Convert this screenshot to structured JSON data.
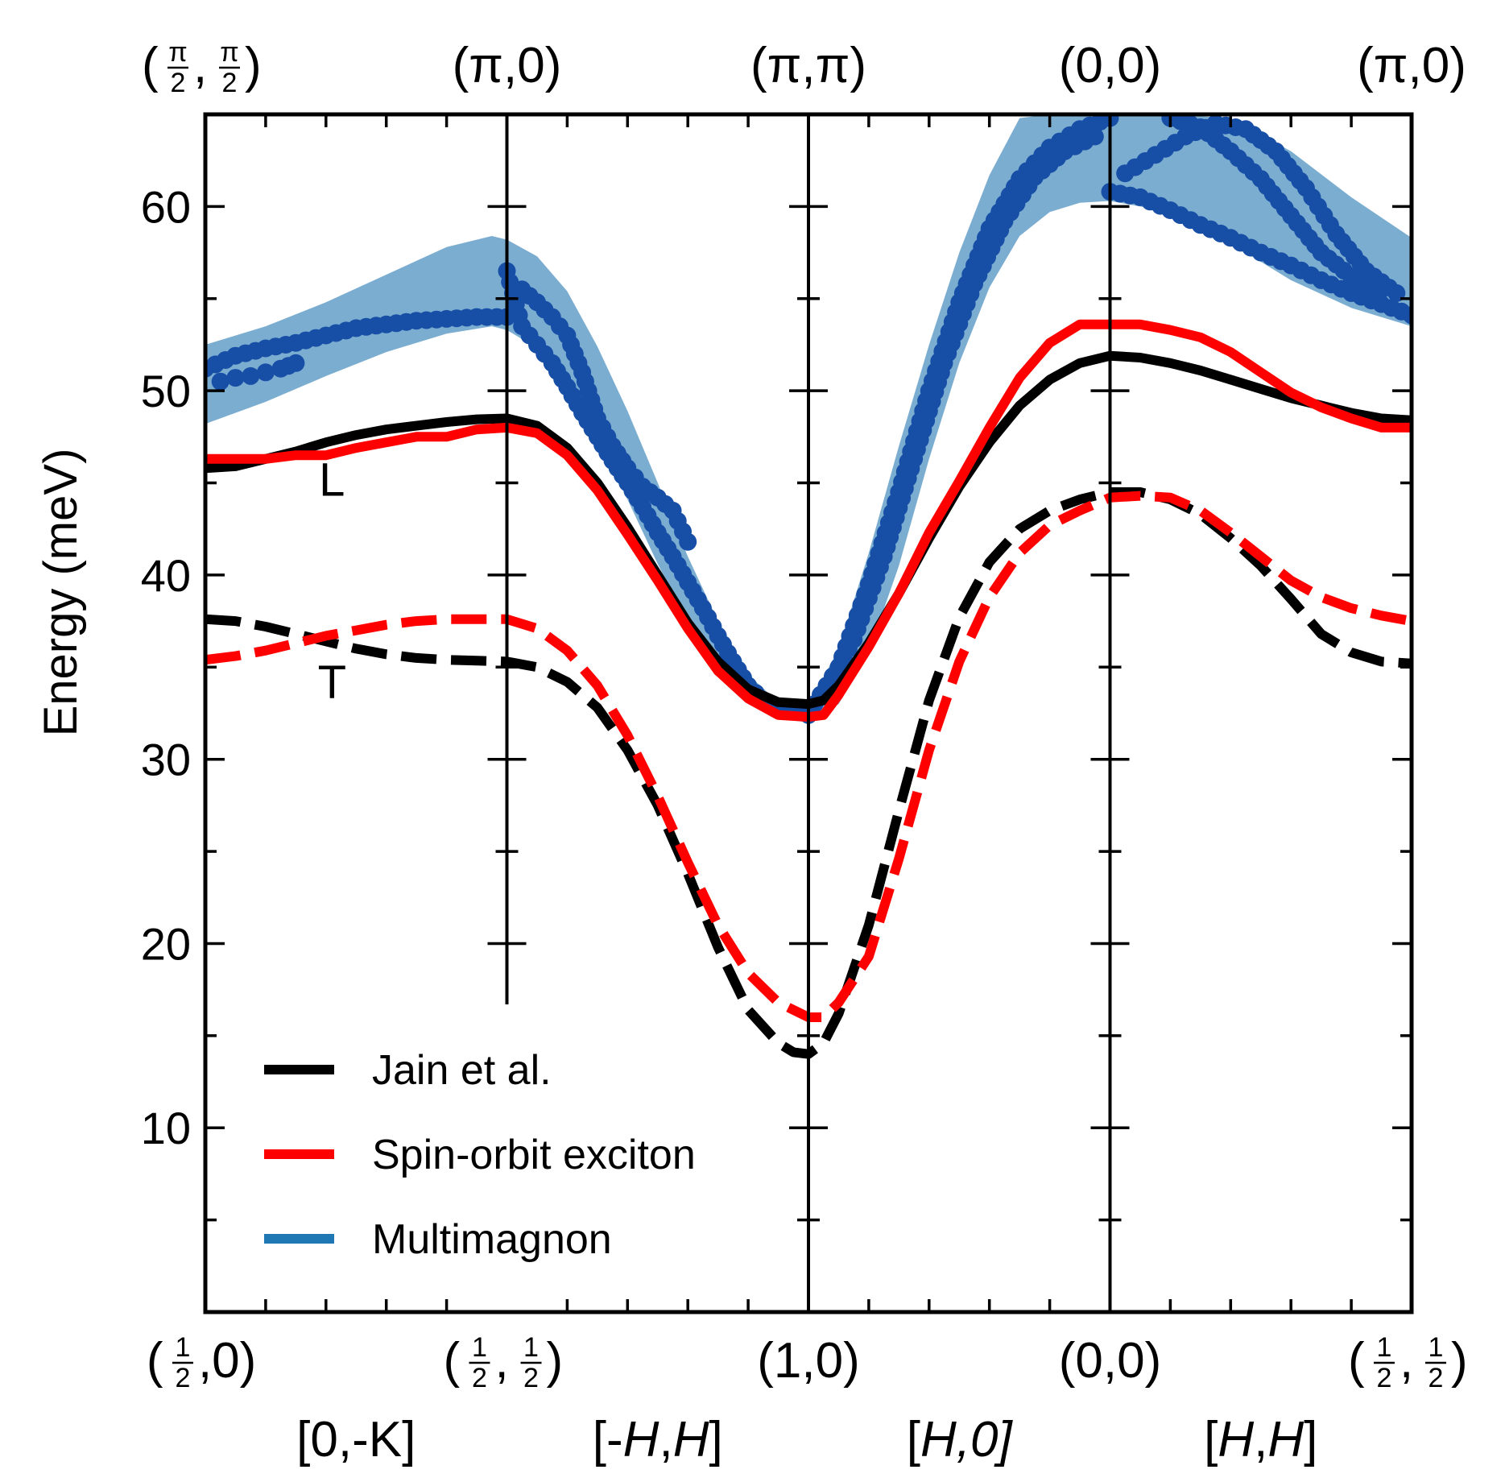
{
  "chart_data": {
    "type": "line",
    "ylabel": "Energy (meV)",
    "ylim": [
      0,
      65
    ],
    "yticks": [
      10,
      20,
      30,
      40,
      50,
      60
    ],
    "x_segments": 4,
    "top_labels": [
      {
        "text": "(π/2,π/2)",
        "pre": "(",
        "num1": "π",
        "den1": "2",
        "mid": ",",
        "num2": "π",
        "den2": "2",
        "post": ")"
      },
      {
        "text": "(π,0)"
      },
      {
        "text": "(π,π)"
      },
      {
        "text": "(0,0)"
      },
      {
        "text": "(π,0)"
      }
    ],
    "bottom_labels": [
      {
        "text": "(1/2,0)",
        "pre": "(",
        "num1": "1",
        "den1": "2",
        "post": ",0)"
      },
      {
        "text": "(1/2,1/2)",
        "pre": "(",
        "num1": "1",
        "den1": "2",
        "mid": ",",
        "num2": "1",
        "den2": "2",
        "post": ")"
      },
      {
        "text": "(1,0)"
      },
      {
        "text": "(0,0)"
      },
      {
        "text": "(1/2,1/2)",
        "pre": "(",
        "num1": "1",
        "den1": "2",
        "mid": ",",
        "num2": "1",
        "den2": "2",
        "post": ")"
      }
    ],
    "segment_labels": [
      {
        "pre": "[0,-K]",
        "parts": [
          {
            "t": "[0,-K]",
            "i": false
          }
        ]
      },
      {
        "pre": "[-H,H]",
        "parts": [
          {
            "t": "[-",
            "i": false
          },
          {
            "t": "H",
            "i": true
          },
          {
            "t": ",",
            "i": false
          },
          {
            "t": "H",
            "i": true
          },
          {
            "t": "]",
            "i": false
          }
        ]
      },
      {
        "pre": "[H,0]",
        "parts": [
          {
            "t": "[",
            "i": false
          },
          {
            "t": "H",
            "i": true
          },
          {
            "t": ",0]",
            "i": true
          }
        ]
      },
      {
        "pre": "[H,H]",
        "parts": [
          {
            "t": "[",
            "i": false
          },
          {
            "t": "H",
            "i": true
          },
          {
            "t": ",",
            "i": false
          },
          {
            "t": "H",
            "i": true
          },
          {
            "t": "]",
            "i": false
          }
        ]
      }
    ],
    "annotations": [
      {
        "text": "L",
        "x": 0.42,
        "y": 44.3
      },
      {
        "text": "T",
        "x": 0.42,
        "y": 33.3
      }
    ],
    "legend": {
      "placement": "lower-left",
      "entries": [
        {
          "label": "Jain et al.",
          "color": "#000000"
        },
        {
          "label": "Spin-orbit exciton",
          "color": "#ff0000"
        },
        {
          "label": "Multimagnon",
          "color": "#1f77b4"
        }
      ]
    },
    "series": [
      {
        "name": "Jain et al. (L)",
        "style": "solid",
        "color": "#000000",
        "x": [
          0,
          0.1,
          0.2,
          0.3,
          0.4,
          0.5,
          0.6,
          0.7,
          0.8,
          0.9,
          1.0,
          1.1,
          1.2,
          1.3,
          1.4,
          1.5,
          1.6,
          1.7,
          1.8,
          1.9,
          2.0,
          2.05,
          2.1,
          2.2,
          2.3,
          2.4,
          2.5,
          2.6,
          2.7,
          2.8,
          2.9,
          3.0,
          3.1,
          3.2,
          3.3,
          3.4,
          3.5,
          3.6,
          3.7,
          3.8,
          3.9,
          4.0
        ],
        "y": [
          45.8,
          45.9,
          46.3,
          46.7,
          47.2,
          47.6,
          47.9,
          48.1,
          48.3,
          48.45,
          48.5,
          48.1,
          46.9,
          45.0,
          42.6,
          40.0,
          37.4,
          35.3,
          33.8,
          33.1,
          33.0,
          33.2,
          34.0,
          36.3,
          39.0,
          42.0,
          44.8,
          47.2,
          49.2,
          50.6,
          51.5,
          51.9,
          51.8,
          51.5,
          51.1,
          50.6,
          50.1,
          49.6,
          49.2,
          48.8,
          48.5,
          48.4
        ]
      },
      {
        "name": "Spin-orbit exciton (L)",
        "style": "solid",
        "color": "#ff0000",
        "x": [
          0,
          0.1,
          0.2,
          0.3,
          0.35,
          0.4,
          0.5,
          0.6,
          0.7,
          0.8,
          0.9,
          1.0,
          1.1,
          1.2,
          1.3,
          1.4,
          1.5,
          1.6,
          1.7,
          1.8,
          1.9,
          2.0,
          2.05,
          2.1,
          2.2,
          2.3,
          2.4,
          2.5,
          2.6,
          2.7,
          2.8,
          2.9,
          3.0,
          3.1,
          3.2,
          3.3,
          3.4,
          3.5,
          3.6,
          3.7,
          3.8,
          3.9,
          4.0
        ],
        "y": [
          46.3,
          46.3,
          46.3,
          46.5,
          46.5,
          46.5,
          46.9,
          47.2,
          47.5,
          47.5,
          47.9,
          48.0,
          47.7,
          46.5,
          44.6,
          42.2,
          39.7,
          37.1,
          34.8,
          33.3,
          32.4,
          32.3,
          32.4,
          33.5,
          36.1,
          39.0,
          42.3,
          45.1,
          48.0,
          50.7,
          52.6,
          53.6,
          53.6,
          53.6,
          53.3,
          52.9,
          52.1,
          51.0,
          49.9,
          49.1,
          48.5,
          48.0,
          48.0
        ]
      },
      {
        "name": "Jain et al. (T)",
        "style": "dashed",
        "color": "#000000",
        "x": [
          0,
          0.1,
          0.2,
          0.3,
          0.4,
          0.5,
          0.6,
          0.7,
          0.8,
          0.9,
          1.0,
          1.1,
          1.2,
          1.3,
          1.4,
          1.5,
          1.6,
          1.7,
          1.8,
          1.9,
          1.95,
          2.0,
          2.05,
          2.1,
          2.2,
          2.3,
          2.4,
          2.5,
          2.6,
          2.7,
          2.8,
          2.9,
          3.0,
          3.1,
          3.2,
          3.3,
          3.4,
          3.5,
          3.6,
          3.7,
          3.8,
          3.9,
          4.0
        ],
        "y": [
          37.6,
          37.5,
          37.2,
          36.8,
          36.4,
          36.0,
          35.7,
          35.5,
          35.4,
          35.35,
          35.3,
          35.0,
          34.2,
          32.8,
          30.5,
          27.5,
          23.8,
          19.8,
          16.4,
          14.6,
          14.1,
          14.0,
          14.6,
          16.2,
          21.0,
          27.2,
          33.2,
          37.7,
          40.7,
          42.5,
          43.5,
          44.1,
          44.5,
          44.5,
          44.1,
          43.3,
          42.0,
          40.5,
          38.7,
          36.8,
          35.8,
          35.3,
          35.2
        ]
      },
      {
        "name": "Spin-orbit exciton (T)",
        "style": "dashed",
        "color": "#ff0000",
        "x": [
          0,
          0.1,
          0.2,
          0.3,
          0.4,
          0.5,
          0.6,
          0.7,
          0.8,
          0.9,
          1.0,
          1.1,
          1.2,
          1.3,
          1.4,
          1.5,
          1.6,
          1.7,
          1.8,
          1.9,
          2.0,
          2.05,
          2.1,
          2.2,
          2.3,
          2.4,
          2.5,
          2.6,
          2.7,
          2.8,
          2.9,
          3.0,
          3.1,
          3.2,
          3.3,
          3.4,
          3.5,
          3.6,
          3.7,
          3.8,
          3.9,
          4.0
        ],
        "y": [
          35.4,
          35.6,
          35.9,
          36.3,
          36.7,
          37.0,
          37.3,
          37.5,
          37.6,
          37.6,
          37.6,
          37.1,
          35.9,
          34.0,
          31.3,
          28.0,
          24.4,
          21.0,
          18.4,
          16.8,
          16.0,
          16.0,
          16.8,
          19.3,
          24.6,
          30.5,
          35.3,
          38.8,
          41.2,
          42.7,
          43.5,
          44.2,
          44.3,
          44.2,
          43.5,
          42.3,
          41.0,
          39.7,
          38.8,
          38.2,
          37.8,
          37.5
        ]
      }
    ],
    "multimagnon_band": {
      "color": "#74a9cf",
      "x": [
        0,
        0.2,
        0.4,
        0.6,
        0.8,
        0.95,
        1.0,
        1.1,
        1.2,
        1.3,
        1.4,
        1.5,
        1.6,
        1.7,
        1.8,
        1.9,
        2.0,
        2.1,
        2.2,
        2.3,
        2.4,
        2.5,
        2.6,
        2.7,
        2.8,
        2.9,
        3.0,
        3.2,
        3.4,
        3.6,
        3.8,
        4.0
      ],
      "upper": [
        52.5,
        53.5,
        54.8,
        56.3,
        57.8,
        58.4,
        58.2,
        57.3,
        55.4,
        52.4,
        48.9,
        45.0,
        41.0,
        37.5,
        34.6,
        33.1,
        32.9,
        36.0,
        41.2,
        47.0,
        52.5,
        57.5,
        61.7,
        64.8,
        65.0,
        65.0,
        65.0,
        65.0,
        64.8,
        63.0,
        60.5,
        58.3
      ],
      "lower": [
        48.2,
        49.4,
        50.8,
        52.1,
        53.1,
        53.5,
        53.3,
        52.3,
        50.3,
        47.4,
        44.1,
        40.6,
        37.4,
        34.8,
        33.0,
        32.2,
        32.0,
        33.0,
        35.8,
        40.5,
        46.3,
        51.5,
        55.6,
        58.4,
        59.7,
        60.2,
        60.3,
        59.7,
        58.0,
        56.0,
        54.5,
        53.5
      ]
    },
    "multimagnon_points": {
      "color": "#174ea6",
      "branches": [
        {
          "x": [
            0,
            0.1,
            0.2,
            0.3,
            0.4,
            0.5,
            0.6,
            0.7,
            0.8,
            0.9,
            1.0
          ],
          "y": [
            51.2,
            51.9,
            52.3,
            52.6,
            53.0,
            53.4,
            53.6,
            53.8,
            53.9,
            54.0,
            54.0
          ]
        },
        {
          "x": [
            0.05,
            0.1,
            0.15,
            0.2,
            0.25,
            0.3
          ],
          "y": [
            50.5,
            50.7,
            50.8,
            51.0,
            51.2,
            51.5
          ]
        },
        {
          "x": [
            1.0,
            1.05,
            1.1,
            1.15,
            1.2,
            1.25,
            1.3,
            1.35,
            1.4,
            1.45,
            1.5,
            1.55,
            1.6,
            1.65,
            1.7,
            1.75,
            1.8,
            1.85,
            1.9,
            1.95,
            2.0
          ],
          "y": [
            56.5,
            53.5,
            52.5,
            51.5,
            50.2,
            48.8,
            47.5,
            46.2,
            45.0,
            43.7,
            42.3,
            41.0,
            39.6,
            38.2,
            36.7,
            35.3,
            34.0,
            33.2,
            32.8,
            32.6,
            32.4
          ]
        },
        {
          "x": [
            1.05,
            1.1,
            1.15,
            1.2,
            1.25,
            1.3,
            1.35,
            1.4,
            1.45,
            1.5,
            1.55,
            1.6
          ],
          "y": [
            55.5,
            54.8,
            54.0,
            53.0,
            51.0,
            48.5,
            47.0,
            45.8,
            44.8,
            44.2,
            43.5,
            41.8
          ]
        },
        {
          "x": [
            2.0,
            2.1,
            2.2,
            2.3,
            2.4,
            2.5,
            2.6,
            2.7,
            2.8,
            2.9,
            3.0
          ],
          "y": [
            32.5,
            35.0,
            39.5,
            44.5,
            50.0,
            54.8,
            58.8,
            61.5,
            63.2,
            64.2,
            64.8
          ]
        },
        {
          "x": [
            2.05,
            2.15,
            2.25,
            2.35,
            2.45,
            2.55,
            2.65,
            2.75,
            2.85,
            2.95
          ],
          "y": [
            33.5,
            36.5,
            41.0,
            46.3,
            51.5,
            55.8,
            59.2,
            61.6,
            63.0,
            63.8
          ]
        },
        {
          "x": [
            3.0,
            3.1,
            3.2,
            3.3,
            3.4,
            3.5,
            3.6,
            3.7,
            3.8,
            3.9,
            4.0
          ],
          "y": [
            60.8,
            60.5,
            59.8,
            59.0,
            58.3,
            57.5,
            56.8,
            56.0,
            55.3,
            54.7,
            54.1
          ]
        },
        {
          "x": [
            3.05,
            3.15,
            3.25,
            3.35,
            3.45,
            3.55,
            3.65,
            3.75,
            3.85,
            3.95
          ],
          "y": [
            61.8,
            62.8,
            63.8,
            64.5,
            64.2,
            63.0,
            61.0,
            58.5,
            56.5,
            55.3
          ]
        },
        {
          "x": [
            3.2,
            3.3,
            3.4,
            3.5,
            3.6,
            3.7,
            3.8,
            3.9
          ],
          "y": [
            64.8,
            64.3,
            63.0,
            61.5,
            59.5,
            57.5,
            56.2,
            55.5
          ]
        }
      ]
    }
  }
}
